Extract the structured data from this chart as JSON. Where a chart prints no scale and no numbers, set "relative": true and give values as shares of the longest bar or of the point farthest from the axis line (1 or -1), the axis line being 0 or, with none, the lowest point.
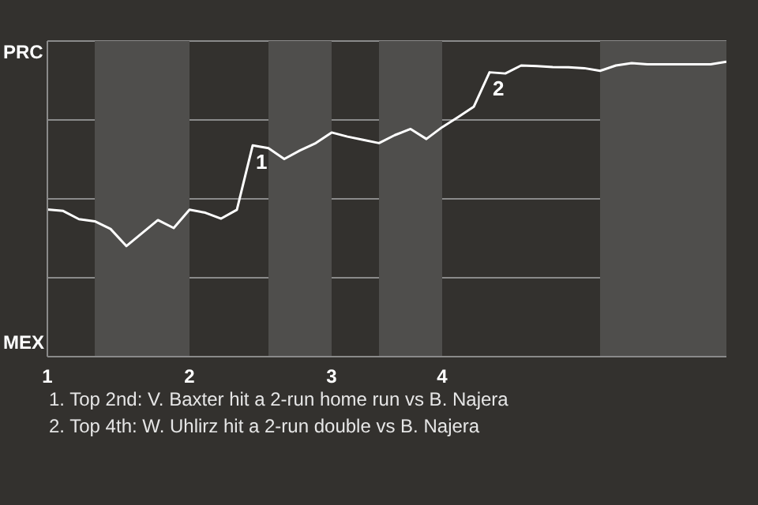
{
  "chart_data": {
    "type": "line",
    "relative": true,
    "categories": [
      "1",
      null,
      null,
      null,
      null,
      null,
      null,
      null,
      null,
      "2",
      null,
      null,
      null,
      null,
      null,
      null,
      null,
      null,
      "3",
      null,
      null,
      null,
      null,
      null,
      null,
      "4",
      null,
      null,
      null,
      null,
      null,
      null,
      null,
      null,
      null,
      null,
      null,
      null,
      null,
      null,
      null,
      null,
      null,
      null
    ],
    "series": [
      {
        "color": "#ffffff",
        "values": [
          0.499,
          0.494,
          0.466,
          0.459,
          0.433,
          0.375,
          0.419,
          0.463,
          0.436,
          0.498,
          0.488,
          0.468,
          0.498,
          0.716,
          0.707,
          0.67,
          0.699,
          0.724,
          0.76,
          0.746,
          0.735,
          0.724,
          0.751,
          0.772,
          0.738,
          0.778,
          0.812,
          0.847,
          0.964,
          0.96,
          0.987,
          0.985,
          0.982,
          0.981,
          0.978,
          0.969,
          0.987,
          0.995,
          0.991,
          0.991,
          0.991,
          0.991,
          0.991,
          1
        ]
      }
    ],
    "grid": "y",
    "annotations": [
      "PRC",
      "MEX",
      {
        "text": "1",
        "y": 0.716
      },
      {
        "text": "2",
        "y": 0.964
      },
      "1. Top 2nd: V. Baxter hit a 2-run home run vs B. Najera",
      "2. Top 4th: W. Uhlirz hit a 2-run double vs B. Najera"
    ]
  }
}
